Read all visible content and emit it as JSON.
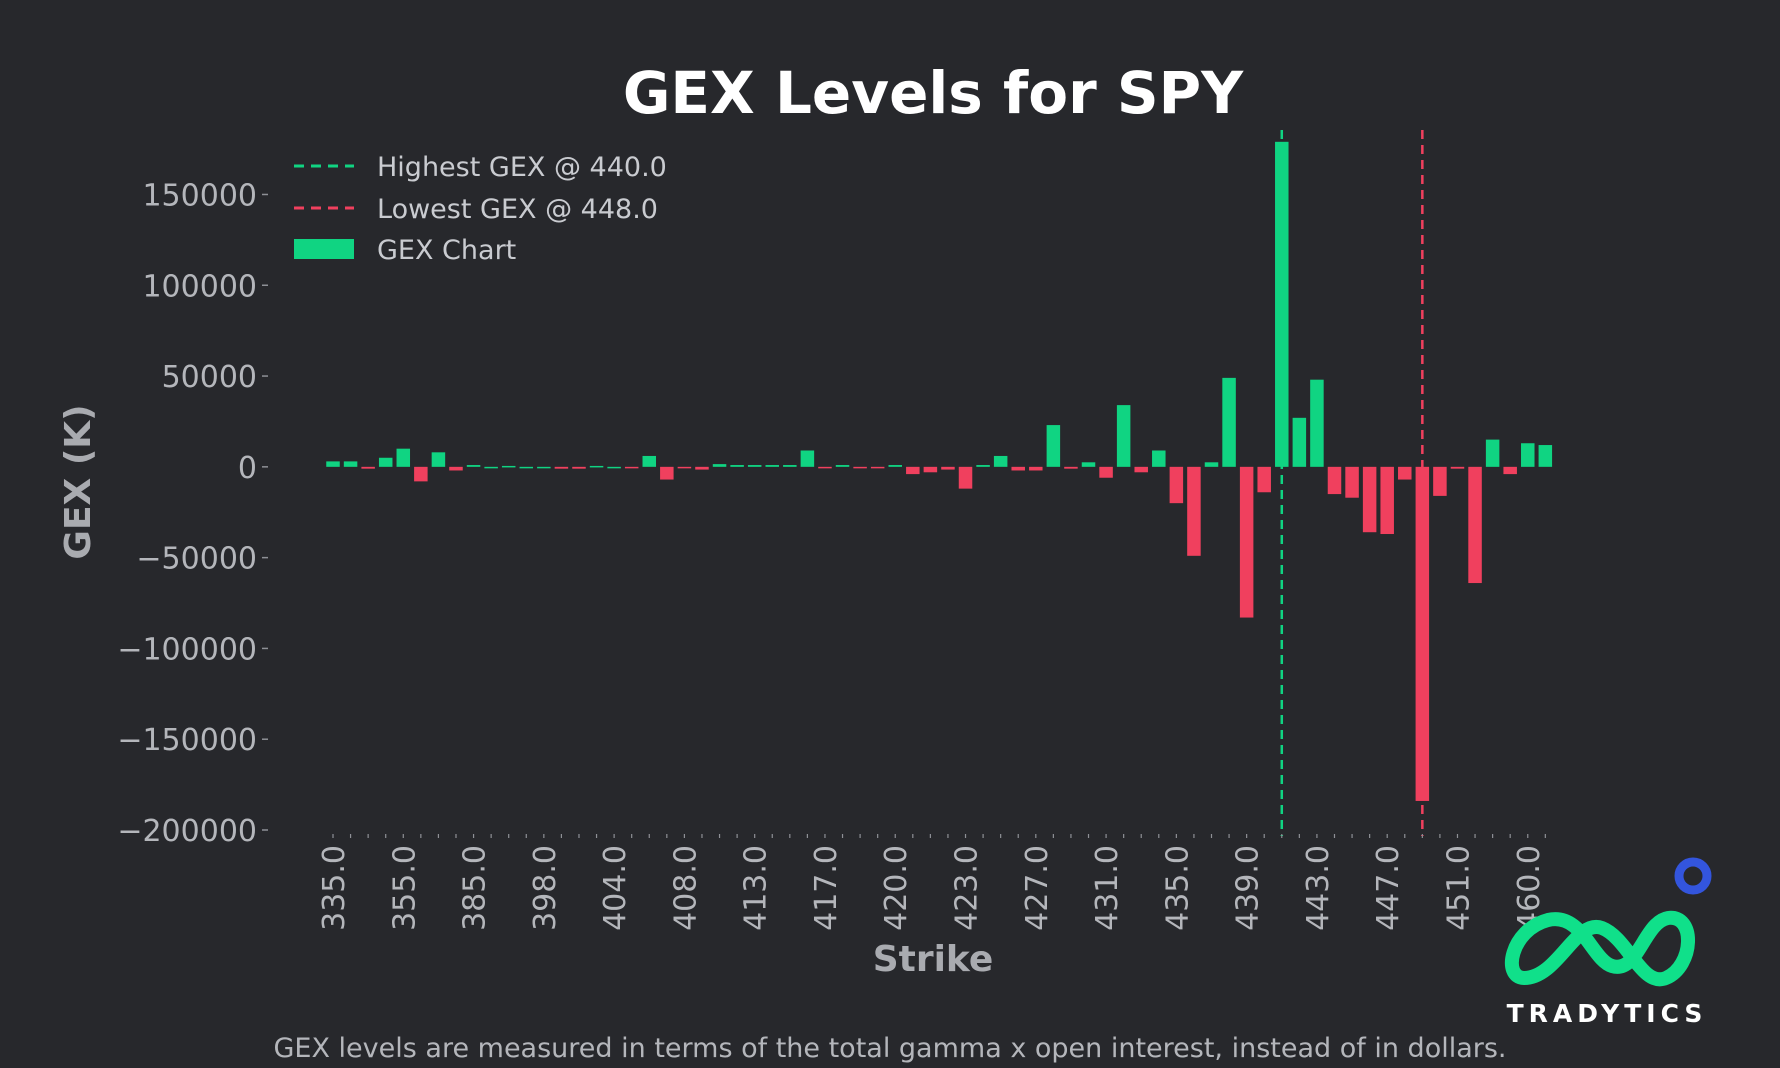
{
  "chart_data": {
    "type": "bar",
    "title": "GEX Levels for SPY",
    "xlabel": "Strike",
    "ylabel": "GEX (K)",
    "footnote": "GEX levels are measured in terms of the total gamma x open interest, instead of in dollars.",
    "ylim": [
      -200000,
      180000
    ],
    "y_ticks": [
      150000,
      100000,
      50000,
      0,
      -50000,
      -100000,
      -150000,
      -200000
    ],
    "y_tick_labels": [
      "150000",
      "100000",
      "50000",
      "0",
      "−50000",
      "−100000",
      "−150000",
      "−200000"
    ],
    "x_tick_labels": [
      "335.0",
      "355.0",
      "385.0",
      "398.0",
      "404.0",
      "408.0",
      "413.0",
      "417.0",
      "420.0",
      "423.0",
      "427.0",
      "431.0",
      "435.0",
      "439.0",
      "443.0",
      "447.0",
      "451.0",
      "460.0"
    ],
    "x_tick_every": 4,
    "values": [
      3000,
      3000,
      -1000,
      5000,
      10000,
      -8000,
      8000,
      -2000,
      1000,
      0,
      500,
      0,
      0,
      -1000,
      -1000,
      500,
      0,
      -500,
      6000,
      -7000,
      -500,
      -1500,
      1500,
      1000,
      1000,
      1000,
      1000,
      9000,
      -500,
      1000,
      -500,
      -500,
      1000,
      -4000,
      -3000,
      -1500,
      -12000,
      1000,
      6000,
      -2000,
      -2000,
      23000,
      -1000,
      2500,
      -6000,
      34000,
      -3000,
      9000,
      -20000,
      -49000,
      2500,
      49000,
      -83000,
      -14000,
      179000,
      27000,
      48000,
      -15000,
      -17000,
      -36000,
      -37000,
      -7000,
      -184000,
      -16000,
      -1000,
      -64000,
      15000,
      -4000,
      13000,
      12000
    ],
    "colors": {
      "positive": "#10d482",
      "negative": "#f0405e",
      "highest_line": "#10d482",
      "lowest_line": "#f0405e"
    },
    "vlines": [
      {
        "label": "Highest GEX @ 440.0",
        "strike": 440.0,
        "color": "#10d482"
      },
      {
        "label": "Lowest GEX @ 448.0",
        "strike": 448.0,
        "color": "#f0405e"
      }
    ],
    "legend": {
      "placement": "top-left",
      "entries": [
        "Highest GEX @ 440.0",
        "Lowest GEX @ 448.0",
        "GEX Chart"
      ]
    },
    "grid": false
  },
  "brand": {
    "name": "TRADYTICS",
    "colors": {
      "logo": "#10e08a",
      "dot": "#3355dd"
    }
  }
}
